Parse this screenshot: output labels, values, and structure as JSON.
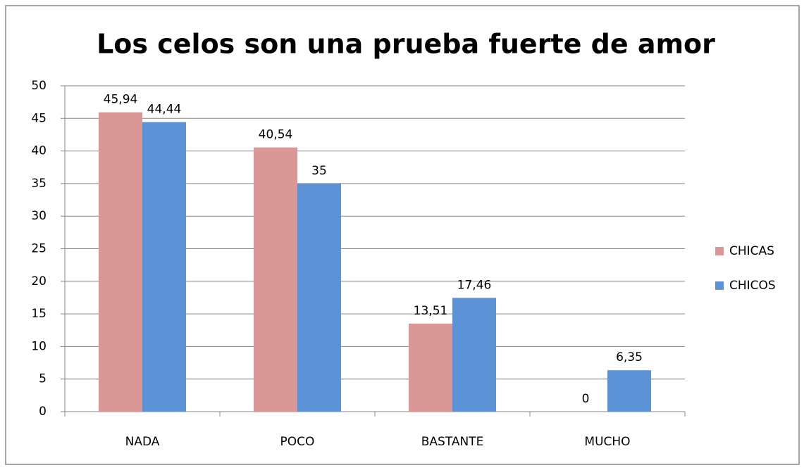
{
  "chart_data": {
    "type": "bar",
    "title": "Los celos son una prueba fuerte de amor",
    "categories": [
      "NADA",
      "POCO",
      "BASTANTE",
      "MUCHO"
    ],
    "series": [
      {
        "name": "CHICAS",
        "color": "#d99795",
        "values": [
          45.94,
          40.54,
          13.51,
          0
        ],
        "value_labels": [
          "45,94",
          "40,54",
          "13,51",
          "0"
        ]
      },
      {
        "name": "CHICOS",
        "color": "#5b93d6",
        "values": [
          44.44,
          35,
          17.46,
          6.35
        ],
        "value_labels": [
          "44,44",
          "35",
          "17,46",
          "6,35"
        ]
      }
    ],
    "ylim": [
      0,
      50
    ],
    "yticks": [
      0,
      5,
      10,
      15,
      20,
      25,
      30,
      35,
      40,
      45,
      50
    ],
    "grid": true,
    "legend": "right"
  }
}
